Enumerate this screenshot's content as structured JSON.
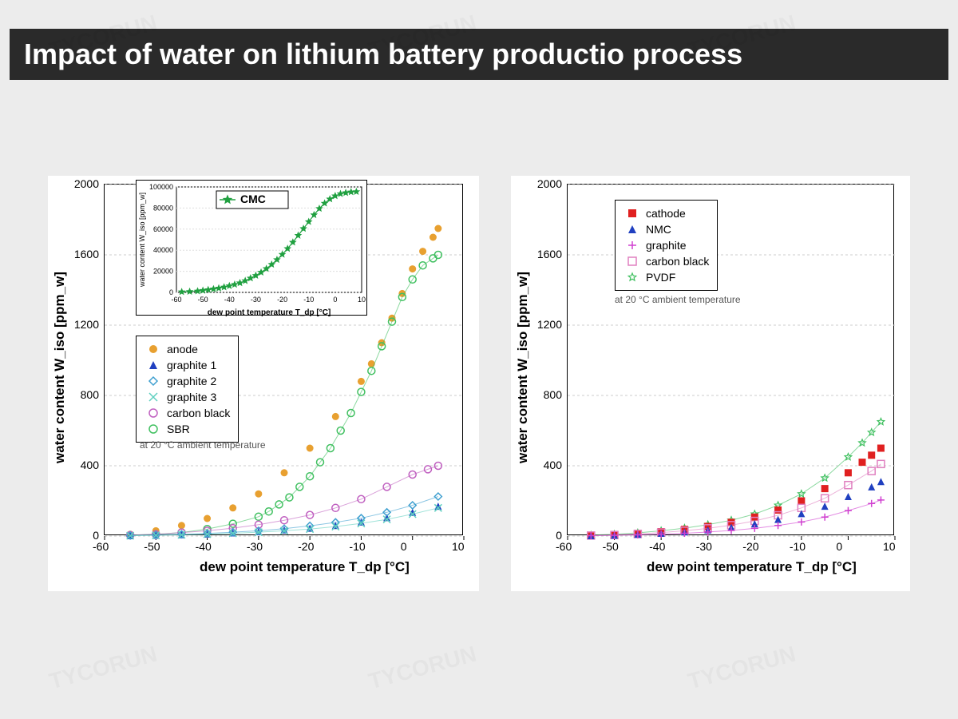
{
  "title": "Impact of water on lithium battery productio process",
  "watermark_text": "TYCORUN",
  "note_text": "at 20 °C ambient temperature",
  "axes": {
    "xlabel": "dew point temperature T_dp [°C]",
    "ylabel": "water content W_iso [ppm_w]",
    "xlim": [
      -60,
      10
    ],
    "ylim": [
      0,
      2000
    ],
    "xticks": [
      -60,
      -50,
      -40,
      -30,
      -20,
      -10,
      0,
      10
    ],
    "yticks": [
      0,
      400,
      800,
      1200,
      1600,
      2000
    ]
  },
  "colors": {
    "background": "#ececec",
    "title_bg": "#2a2a2a",
    "title_fg": "#ffffff",
    "axis": "#000000",
    "grid": "#cccccc",
    "anode": "#e8a030",
    "graphite1": "#2040c0",
    "graphite2": "#40a0d0",
    "graphite3": "#60d0c0",
    "carbon_black": "#c060c0",
    "sbr": "#40c060",
    "cmc": "#20a040",
    "cathode": "#e02020",
    "nmc": "#2040c0",
    "graphite_r": "#d040d0",
    "carbon_black_r": "#e080c0",
    "pvdf": "#40c060"
  },
  "chart_left": {
    "legend": [
      {
        "label": "anode",
        "color": "#e8a030",
        "marker": "circle-filled"
      },
      {
        "label": "graphite 1",
        "color": "#2040c0",
        "marker": "triangle"
      },
      {
        "label": "graphite 2",
        "color": "#40a0d0",
        "marker": "diamond"
      },
      {
        "label": "graphite 3",
        "color": "#60d0c0",
        "marker": "cross"
      },
      {
        "label": "carbon black",
        "color": "#c060c0",
        "marker": "circle-open"
      },
      {
        "label": "SBR",
        "color": "#40c060",
        "marker": "circle-open"
      }
    ],
    "series": {
      "anode": {
        "x": [
          -55,
          -50,
          -45,
          -40,
          -35,
          -30,
          -25,
          -20,
          -15,
          -10,
          -8,
          -6,
          -4,
          -2,
          0,
          2,
          4,
          5
        ],
        "y": [
          10,
          30,
          60,
          100,
          160,
          240,
          360,
          500,
          680,
          880,
          980,
          1100,
          1240,
          1380,
          1520,
          1620,
          1700,
          1750
        ],
        "color": "#e8a030",
        "marker": "circle-filled"
      },
      "sbr": {
        "x": [
          -55,
          -50,
          -45,
          -40,
          -35,
          -30,
          -28,
          -26,
          -24,
          -22,
          -20,
          -18,
          -16,
          -14,
          -12,
          -10,
          -8,
          -6,
          -4,
          -2,
          0,
          2,
          4,
          5
        ],
        "y": [
          5,
          10,
          20,
          40,
          70,
          110,
          140,
          180,
          220,
          280,
          340,
          420,
          500,
          600,
          700,
          820,
          940,
          1080,
          1220,
          1360,
          1460,
          1540,
          1580,
          1600
        ],
        "color": "#40c060",
        "marker": "circle-open"
      },
      "carbon_black": {
        "x": [
          -55,
          -50,
          -45,
          -40,
          -35,
          -30,
          -25,
          -20,
          -15,
          -10,
          -5,
          0,
          3,
          5
        ],
        "y": [
          5,
          10,
          20,
          30,
          45,
          65,
          90,
          120,
          160,
          210,
          280,
          350,
          380,
          400
        ],
        "color": "#c060c0",
        "marker": "circle-open"
      },
      "graphite1": {
        "x": [
          -55,
          -50,
          -45,
          -40,
          -35,
          -30,
          -25,
          -20,
          -15,
          -10,
          -5,
          0,
          5
        ],
        "y": [
          2,
          5,
          8,
          12,
          18,
          25,
          35,
          45,
          60,
          80,
          105,
          135,
          170
        ],
        "color": "#2040c0",
        "marker": "triangle"
      },
      "graphite2": {
        "x": [
          -55,
          -50,
          -45,
          -40,
          -35,
          -30,
          -25,
          -20,
          -15,
          -10,
          -5,
          0,
          5
        ],
        "y": [
          3,
          6,
          10,
          15,
          22,
          30,
          42,
          58,
          78,
          102,
          135,
          175,
          225
        ],
        "color": "#40a0d0",
        "marker": "diamond"
      },
      "graphite3": {
        "x": [
          -55,
          -50,
          -45,
          -40,
          -35,
          -30,
          -25,
          -20,
          -15,
          -10,
          -5,
          0,
          5
        ],
        "y": [
          2,
          4,
          7,
          11,
          16,
          22,
          30,
          40,
          54,
          72,
          95,
          125,
          160
        ],
        "color": "#60d0c0",
        "marker": "cross"
      }
    },
    "inset": {
      "legend_label": "CMC",
      "xlim": [
        -60,
        10
      ],
      "ylim": [
        0,
        100000
      ],
      "yticks": [
        0,
        20000,
        40000,
        60000,
        80000,
        100000
      ],
      "xticks": [
        -60,
        -50,
        -40,
        -30,
        -20,
        -10,
        0,
        10
      ],
      "data": {
        "x": [
          -58,
          -55,
          -52,
          -50,
          -48,
          -46,
          -44,
          -42,
          -40,
          -38,
          -36,
          -34,
          -32,
          -30,
          -28,
          -26,
          -24,
          -22,
          -20,
          -18,
          -16,
          -14,
          -12,
          -10,
          -8,
          -6,
          -4,
          -2,
          0,
          2,
          4,
          6,
          8
        ],
        "y": [
          500,
          800,
          1200,
          1800,
          2500,
          3200,
          4000,
          5000,
          6200,
          7500,
          9000,
          11000,
          13500,
          16000,
          19000,
          22500,
          26500,
          31000,
          36000,
          41500,
          47500,
          54000,
          60500,
          67000,
          73500,
          79500,
          84500,
          88500,
          91500,
          93500,
          94500,
          95200,
          95500
        ],
        "color": "#20a040",
        "marker": "star"
      }
    }
  },
  "chart_right": {
    "legend": [
      {
        "label": "cathode",
        "color": "#e02020",
        "marker": "square-filled"
      },
      {
        "label": "NMC",
        "color": "#2040c0",
        "marker": "triangle"
      },
      {
        "label": "graphite",
        "color": "#d040d0",
        "marker": "plus"
      },
      {
        "label": "carbon black",
        "color": "#e080c0",
        "marker": "square-open"
      },
      {
        "label": "PVDF",
        "color": "#40c060",
        "marker": "star-open"
      }
    ],
    "series": {
      "pvdf": {
        "x": [
          -55,
          -50,
          -45,
          -40,
          -35,
          -30,
          -25,
          -20,
          -15,
          -10,
          -5,
          0,
          3,
          5,
          7
        ],
        "y": [
          5,
          10,
          18,
          30,
          45,
          65,
          90,
          125,
          175,
          240,
          330,
          450,
          530,
          590,
          650
        ],
        "color": "#40c060",
        "marker": "star-open"
      },
      "cathode": {
        "x": [
          -55,
          -50,
          -45,
          -40,
          -35,
          -30,
          -25,
          -20,
          -15,
          -10,
          -5,
          0,
          3,
          5,
          7
        ],
        "y": [
          3,
          8,
          15,
          25,
          38,
          55,
          78,
          108,
          148,
          200,
          270,
          360,
          420,
          460,
          500
        ],
        "color": "#e02020",
        "marker": "square-filled"
      },
      "carbon_black": {
        "x": [
          -55,
          -50,
          -45,
          -40,
          -35,
          -30,
          -25,
          -20,
          -15,
          -10,
          -5,
          0,
          5,
          7
        ],
        "y": [
          3,
          6,
          12,
          20,
          30,
          44,
          62,
          86,
          118,
          160,
          215,
          290,
          370,
          410
        ],
        "color": "#e080c0",
        "marker": "square-open"
      },
      "nmc": {
        "x": [
          -55,
          -50,
          -45,
          -40,
          -35,
          -30,
          -25,
          -20,
          -15,
          -10,
          -5,
          0,
          5,
          7
        ],
        "y": [
          2,
          5,
          10,
          16,
          24,
          35,
          50,
          70,
          95,
          128,
          170,
          225,
          280,
          310
        ],
        "color": "#2040c0",
        "marker": "triangle"
      },
      "graphite": {
        "x": [
          -55,
          -50,
          -45,
          -40,
          -35,
          -30,
          -25,
          -20,
          -15,
          -10,
          -5,
          0,
          5,
          7
        ],
        "y": [
          2,
          4,
          7,
          11,
          16,
          23,
          32,
          44,
          60,
          80,
          108,
          145,
          185,
          205
        ],
        "color": "#d040d0",
        "marker": "plus"
      }
    }
  }
}
